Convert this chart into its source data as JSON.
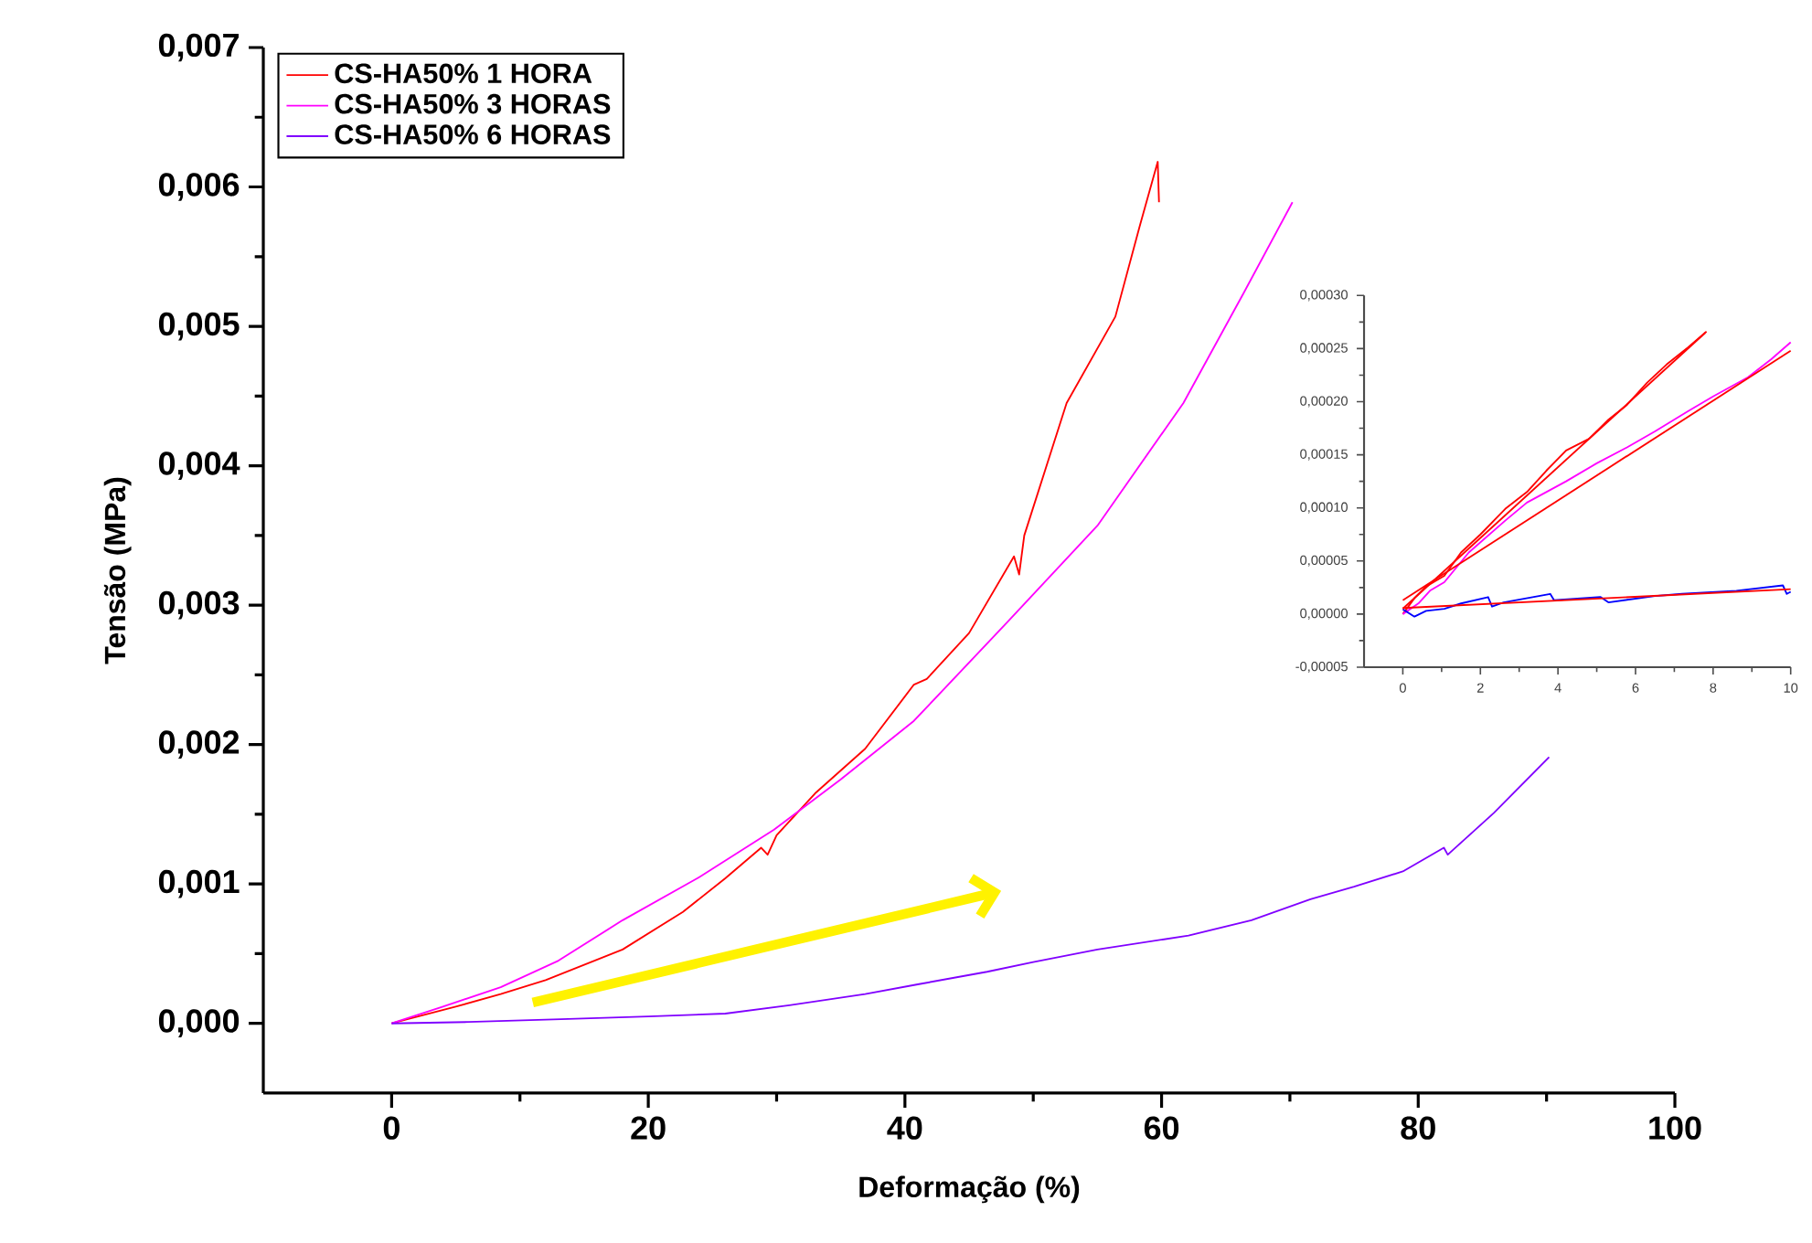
{
  "chart_data": [
    {
      "type": "line",
      "xlabel": "Deformação (%)",
      "ylabel": "Tensão (MPa)",
      "xlim": [
        -10,
        100
      ],
      "xticks": [
        0,
        20,
        40,
        60,
        80,
        100
      ],
      "ylim": [
        -0.0005,
        0.007
      ],
      "yticks": [
        {
          "value": 0,
          "label": "0,000"
        },
        {
          "value": 0.001,
          "label": "0,001"
        },
        {
          "value": 0.002,
          "label": "0,002"
        },
        {
          "value": 0.003,
          "label": "0,003"
        },
        {
          "value": 0.004,
          "label": "0,004"
        },
        {
          "value": 0.005,
          "label": "0,005"
        },
        {
          "value": 0.006,
          "label": "0,006"
        },
        {
          "value": 0.007,
          "label": "0,007"
        }
      ],
      "legend": "top left",
      "grid": false,
      "series": [
        {
          "name": "CS-HA50% 1 HORA",
          "color": "#ff0000",
          "x": [
            0,
            5,
            8.5,
            12,
            18,
            22.7,
            26,
            28.8,
            29.3,
            30,
            33,
            36.9,
            40.7,
            41.7,
            45,
            48.5,
            48.9,
            49.3,
            52.6,
            56.4,
            58.3,
            59.7,
            59.8
          ],
          "values": [
            0,
            0.00012,
            0.00021,
            0.00031,
            0.00053,
            0.0008,
            0.00104,
            0.00126,
            0.00121,
            0.00135,
            0.00165,
            0.00197,
            0.00243,
            0.00247,
            0.0028,
            0.00335,
            0.00322,
            0.0035,
            0.00445,
            0.00507,
            0.00572,
            0.00618,
            0.00589
          ]
        },
        {
          "name": "CS-HA50% 3 HORAS",
          "color": "#ff00ff",
          "x": [
            0,
            4,
            8.5,
            13,
            18,
            24,
            29.8,
            35,
            40.7,
            47.9,
            55,
            61.7,
            66.4,
            70.2
          ],
          "values": [
            0,
            0.00012,
            0.00026,
            0.00045,
            0.00074,
            0.00105,
            0.00139,
            0.00175,
            0.00217,
            0.00287,
            0.00357,
            0.00445,
            0.00524,
            0.00589
          ]
        },
        {
          "name": "CS-HA50% 6 HORAS",
          "color": "#8000ff",
          "x": [
            0,
            6,
            13.2,
            20,
            26,
            31,
            36.9,
            41,
            46.4,
            50,
            55,
            62.1,
            67,
            71.6,
            75,
            78.8,
            82,
            82.3,
            85.9,
            90.2
          ],
          "values": [
            0,
            1e-05,
            3e-05,
            5e-05,
            7e-05,
            0.00013,
            0.00021,
            0.00028,
            0.00037,
            0.00044,
            0.00053,
            0.00063,
            0.00074,
            0.00089,
            0.00098,
            0.00109,
            0.00126,
            0.00121,
            0.00151,
            0.00191
          ]
        }
      ]
    },
    {
      "type": "line",
      "xlim": [
        -1,
        10
      ],
      "xticks": [
        0,
        2,
        4,
        6,
        8,
        10
      ],
      "ylim": [
        -5e-05,
        0.0003
      ],
      "yticks": [
        {
          "value": -5e-05,
          "label": "-0,00005"
        },
        {
          "value": 0,
          "label": "0,00000"
        },
        {
          "value": 5e-05,
          "label": "0,00005"
        },
        {
          "value": 0.0001,
          "label": "0,00010"
        },
        {
          "value": 0.00015,
          "label": "0,00015"
        },
        {
          "value": 0.0002,
          "label": "0,00020"
        },
        {
          "value": 0.00025,
          "label": "0,00025"
        },
        {
          "value": 0.0003,
          "label": "0,00030"
        }
      ],
      "grid": false,
      "series": [
        {
          "color": "#ff0000",
          "x": [
            0,
            0.3,
            0.6,
            1.07,
            1.5,
            2.0,
            2.64,
            3.2,
            3.7,
            4.21,
            4.8,
            5.3,
            5.78,
            6.3,
            6.8,
            7.35,
            7.83
          ],
          "values": [
            0,
            1.5e-05,
            2.6e-05,
            3.6e-05,
            5.8e-05,
            7.5e-05,
            9.9e-05,
            0.000115,
            0.000135,
            0.000154,
            0.000165,
            0.000183,
            0.000197,
            0.000218,
            0.000235,
            0.000251,
            0.000266
          ]
        },
        {
          "color": "#ff00ff",
          "x": [
            0,
            0.4,
            0.7,
            1.07,
            1.7,
            2.64,
            3.2,
            4.21,
            5.0,
            5.78,
            6.5,
            7.35,
            8.0,
            8.9,
            9.5,
            10
          ],
          "values": [
            0,
            1e-05,
            2.2e-05,
            3e-05,
            5.8e-05,
            8.8e-05,
            0.000105,
            0.000125,
            0.000142,
            0.000157,
            0.000172,
            0.000191,
            0.000205,
            0.000223,
            0.00024,
            0.000256
          ]
        },
        {
          "color": "#0000ff",
          "x": [
            0,
            0.3,
            0.6,
            1.07,
            1.5,
            2.2,
            2.3,
            2.6,
            3.8,
            3.9,
            5.1,
            5.3,
            6.5,
            7.2,
            8.6,
            9.8,
            9.9,
            10
          ],
          "values": [
            4.5e-06,
            -2.4e-06,
            3e-06,
            5e-06,
            1e-05,
            1.6e-05,
            7e-06,
            1.1e-05,
            1.9e-05,
            1.3e-05,
            1.6e-05,
            1.1e-05,
            1.7e-05,
            1.9e-05,
            2.2e-05,
            2.7e-05,
            1.9e-05,
            2.1e-05
          ]
        },
        {
          "color": "#ff0000",
          "x": [
            0,
            7.8
          ],
          "values": [
            5e-06,
            0.000265
          ]
        },
        {
          "color": "#ff0000",
          "x": [
            0,
            10
          ],
          "values": [
            1.3e-05,
            0.000248
          ]
        },
        {
          "color": "#ff0000",
          "x": [
            0,
            10
          ],
          "values": [
            5.7e-06,
            2.34e-05
          ]
        }
      ]
    }
  ]
}
